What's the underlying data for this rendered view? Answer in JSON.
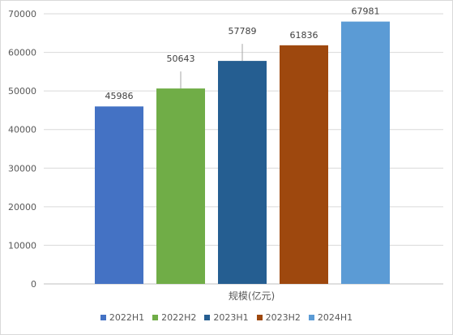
{
  "chart_data": {
    "type": "bar",
    "categories": [
      "规模(亿元)"
    ],
    "series": [
      {
        "name": "2022H1",
        "values": [
          45986
        ],
        "color": "#4472c4"
      },
      {
        "name": "2022H2",
        "values": [
          50643
        ],
        "color": "#70ad47"
      },
      {
        "name": "2023H1",
        "values": [
          57789
        ],
        "color": "#255e91"
      },
      {
        "name": "2023H2",
        "values": [
          61836
        ],
        "color": "#9e480e"
      },
      {
        "name": "2024H1",
        "values": [
          67981
        ],
        "color": "#5b9bd5"
      }
    ],
    "ylim": [
      0,
      70000
    ],
    "yticks": [
      "0",
      "10000",
      "20000",
      "30000",
      "40000",
      "50000",
      "60000",
      "70000"
    ],
    "grid": true,
    "legend": "bottom"
  }
}
